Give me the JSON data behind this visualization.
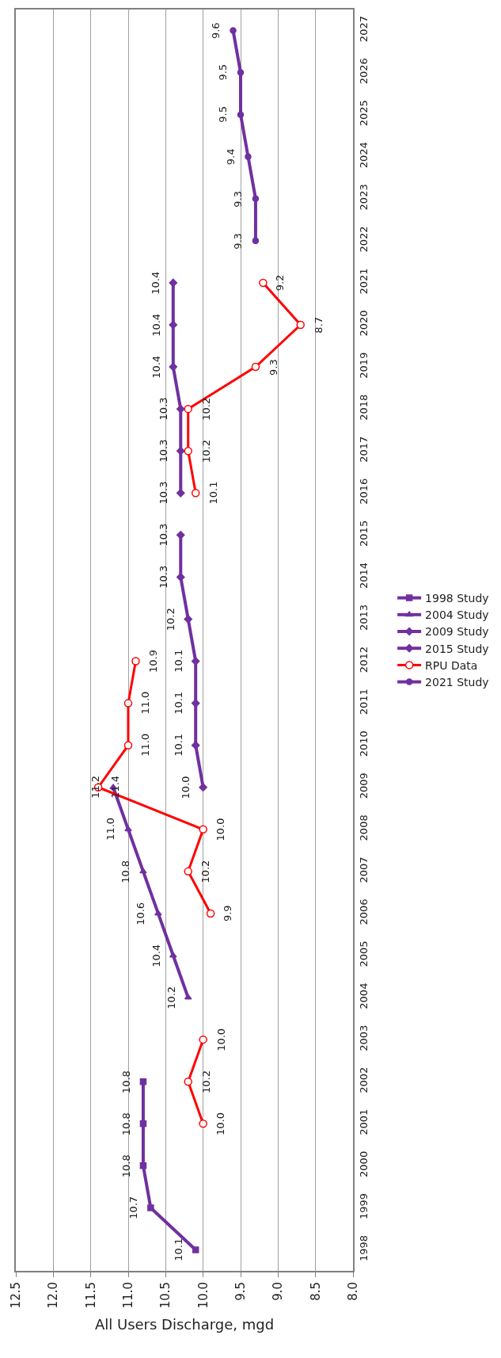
{
  "chart_data": {
    "type": "line",
    "orientation": "horizontal",
    "xlabel": "All Users Discharge, mgd",
    "categories": [
      "2027",
      "2026",
      "2025",
      "2024",
      "2023",
      "2022",
      "2021",
      "2020",
      "2019",
      "2018",
      "2017",
      "2016",
      "2015",
      "2014",
      "2013",
      "2012",
      "2011",
      "2010",
      "2009",
      "2008",
      "2007",
      "2006",
      "2005",
      "2004",
      "2003",
      "2002",
      "2001",
      "2000",
      "1999",
      "1998"
    ],
    "xlim": [
      12.5,
      8.0
    ],
    "xticks": [
      {
        "value": 12.5,
        "label": "12.5"
      },
      {
        "value": 12.0,
        "label": "12.0"
      },
      {
        "value": 11.5,
        "label": "11.5"
      },
      {
        "value": 11.0,
        "label": "11.0"
      },
      {
        "value": 10.5,
        "label": "10.5"
      },
      {
        "value": 10.0,
        "label": "10.0"
      },
      {
        "value": 9.5,
        "label": "9.5"
      },
      {
        "value": 9.0,
        "label": "9.0"
      },
      {
        "value": 8.5,
        "label": "8.5"
      },
      {
        "value": 8.0,
        "label": "8.0"
      }
    ],
    "grid": "x",
    "legend": "right",
    "series": [
      {
        "name": "1998 Study",
        "color": "#7030a0",
        "marker": "square",
        "values": [
          null,
          null,
          null,
          null,
          null,
          null,
          null,
          null,
          null,
          null,
          null,
          null,
          null,
          null,
          null,
          null,
          null,
          null,
          null,
          null,
          null,
          null,
          null,
          null,
          null,
          10.8,
          10.8,
          10.8,
          10.7,
          10.1
        ],
        "value_labels": [
          null,
          null,
          null,
          null,
          null,
          null,
          null,
          null,
          null,
          null,
          null,
          null,
          null,
          null,
          null,
          null,
          null,
          null,
          null,
          null,
          null,
          null,
          null,
          null,
          null,
          "10.8",
          "10.8",
          "10.8",
          "10.7",
          "10.1"
        ]
      },
      {
        "name": "2004 Study",
        "color": "#7030a0",
        "marker": "triangle",
        "values": [
          null,
          null,
          null,
          null,
          null,
          null,
          null,
          null,
          null,
          null,
          null,
          null,
          null,
          null,
          null,
          null,
          null,
          null,
          11.2,
          11.0,
          10.8,
          10.6,
          10.4,
          10.2,
          null,
          null,
          null,
          null,
          null,
          null
        ],
        "value_labels": [
          null,
          null,
          null,
          null,
          null,
          null,
          null,
          null,
          null,
          null,
          null,
          null,
          null,
          null,
          null,
          null,
          null,
          null,
          "11.2",
          "11.0",
          "10.8",
          "10.6",
          "10.4",
          "10.2",
          null,
          null,
          null,
          null,
          null,
          null
        ]
      },
      {
        "name": "2009 Study",
        "color": "#7030a0",
        "marker": "diamond",
        "values": [
          null,
          null,
          null,
          null,
          null,
          null,
          null,
          null,
          null,
          null,
          null,
          null,
          10.3,
          10.3,
          10.2,
          10.1,
          10.1,
          10.1,
          10.0,
          null,
          null,
          null,
          null,
          null,
          null,
          null,
          null,
          null,
          null,
          null
        ],
        "value_labels": [
          null,
          null,
          null,
          null,
          null,
          null,
          null,
          null,
          null,
          null,
          null,
          null,
          "10.3",
          "10.3",
          "10.2",
          "10.1",
          "10.1",
          "10.1",
          "10.0",
          null,
          null,
          null,
          null,
          null,
          null,
          null,
          null,
          null,
          null,
          null
        ]
      },
      {
        "name": "2015 Study",
        "color": "#7030a0",
        "marker": "diamond",
        "values": [
          null,
          null,
          null,
          null,
          null,
          null,
          10.4,
          10.4,
          10.4,
          10.3,
          10.3,
          10.3,
          null,
          null,
          null,
          null,
          null,
          null,
          null,
          null,
          null,
          null,
          null,
          null,
          null,
          null,
          null,
          null,
          null,
          null
        ],
        "value_labels": [
          null,
          null,
          null,
          null,
          null,
          null,
          "10.4",
          "10.4",
          "10.4",
          "10.3",
          "10.3",
          "10.3",
          null,
          null,
          null,
          null,
          null,
          null,
          null,
          null,
          null,
          null,
          null,
          null,
          null,
          null,
          null,
          null,
          null,
          null
        ]
      },
      {
        "name": "RPU Data",
        "color": "#ff0000",
        "marker": "circle",
        "values": [
          null,
          null,
          null,
          null,
          null,
          null,
          9.2,
          8.7,
          9.3,
          10.2,
          10.2,
          10.1,
          null,
          null,
          null,
          10.9,
          11.0,
          11.0,
          11.4,
          10.0,
          10.2,
          9.9,
          null,
          null,
          10.0,
          10.2,
          10.0,
          null,
          null,
          null
        ],
        "value_labels": [
          null,
          null,
          null,
          null,
          null,
          null,
          "9.2",
          "8.7",
          "9.3",
          "10.2",
          "10.2",
          "10.1",
          null,
          null,
          null,
          "10.9",
          "11.0",
          "11.0",
          "11.4",
          "10.0",
          "10.2",
          "9.9",
          null,
          null,
          "10.0",
          "10.2",
          "10.0",
          null,
          null,
          null
        ]
      },
      {
        "name": "2021 Study",
        "color": "#7030a0",
        "marker": "circle",
        "values": [
          9.6,
          9.5,
          9.5,
          9.4,
          9.3,
          9.3,
          null,
          null,
          null,
          null,
          null,
          null,
          null,
          null,
          null,
          null,
          null,
          null,
          null,
          null,
          null,
          null,
          null,
          null,
          null,
          null,
          null,
          null,
          null,
          null
        ],
        "value_labels": [
          "9.6",
          "9.5",
          "9.5",
          "9.4",
          "9.3",
          "9.3",
          null,
          null,
          null,
          null,
          null,
          null,
          null,
          null,
          null,
          null,
          null,
          null,
          null,
          null,
          null,
          null,
          null,
          null,
          null,
          null,
          null,
          null,
          null,
          null
        ]
      }
    ]
  }
}
